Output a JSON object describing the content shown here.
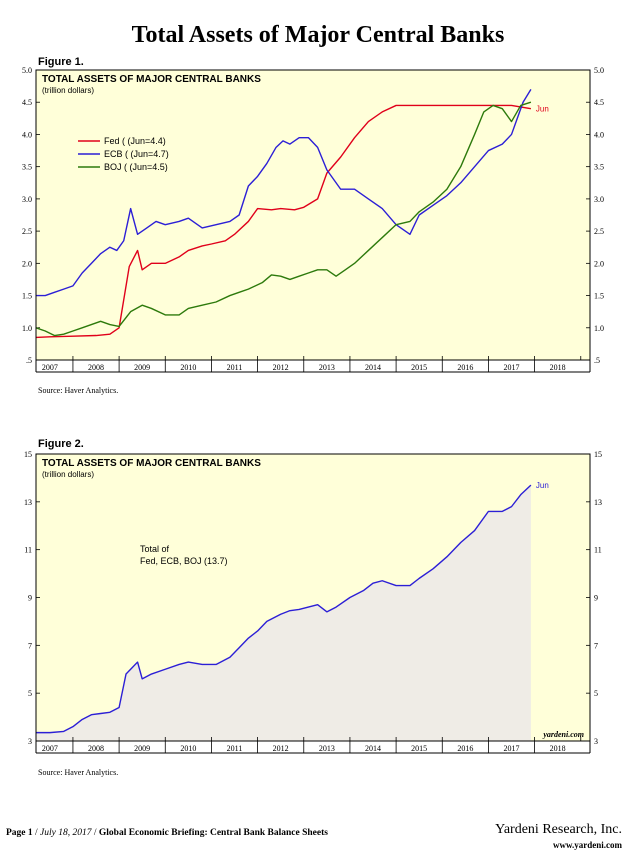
{
  "page": {
    "title": "Total Assets of Major Central Banks",
    "figure1_label": "Figure 1.",
    "figure2_label": "Figure 2.",
    "source1": "Source: Haver Analytics.",
    "source2": "Source: Haver Analytics.",
    "footer_page": "Page 1",
    "footer_date": "July 18, 2017",
    "footer_doc": "Global Economic Briefing: Central Bank Balance Sheets",
    "footer_company": "Yardeni Research, Inc.",
    "footer_url": "www.yardeni.com"
  },
  "chart_data": [
    {
      "type": "line",
      "title": "TOTAL ASSETS OF MAJOR CENTRAL BANKS",
      "subtitle": "(trillion dollars)",
      "xlabel": "",
      "ylabel": "",
      "x_ticks": [
        "2007",
        "2008",
        "2009",
        "2010",
        "2011",
        "2012",
        "2013",
        "2014",
        "2015",
        "2016",
        "2017",
        "2018"
      ],
      "xlim": [
        2006.7,
        2018.7
      ],
      "ylim": [
        0.5,
        5.0
      ],
      "y_ticks": [
        0.5,
        1.0,
        1.5,
        2.0,
        2.5,
        3.0,
        3.5,
        4.0,
        4.5,
        5.0
      ],
      "y_tick_labels": [
        ".5",
        "1.0",
        "1.5",
        "2.0",
        "2.5",
        "3.0",
        "3.5",
        "4.0",
        "4.5",
        "5.0"
      ],
      "end_label": "Jun",
      "legend_position": "upper-left",
      "background": "#ffffd9",
      "series": [
        {
          "name": "Fed ( (Jun=4.4)",
          "color": "#e0001b",
          "x": [
            2006.7,
            2007.0,
            2007.5,
            2008.0,
            2008.3,
            2008.5,
            2008.72,
            2008.9,
            2009.0,
            2009.2,
            2009.5,
            2009.8,
            2010.0,
            2010.3,
            2010.5,
            2010.8,
            2011.0,
            2011.3,
            2011.5,
            2011.8,
            2012.0,
            2012.3,
            2012.5,
            2012.8,
            2013.0,
            2013.3,
            2013.6,
            2013.9,
            2014.2,
            2014.5,
            2014.8,
            2015.0,
            2015.5,
            2016.0,
            2016.5,
            2017.0,
            2017.42
          ],
          "y": [
            0.85,
            0.86,
            0.87,
            0.88,
            0.9,
            1.0,
            1.95,
            2.2,
            1.9,
            2.0,
            2.0,
            2.1,
            2.2,
            2.27,
            2.3,
            2.35,
            2.45,
            2.65,
            2.85,
            2.83,
            2.85,
            2.83,
            2.87,
            3.0,
            3.4,
            3.65,
            3.95,
            4.2,
            4.35,
            4.45,
            4.45,
            4.45,
            4.45,
            4.45,
            4.45,
            4.45,
            4.4
          ]
        },
        {
          "name": "ECB ( (Jun=4.7)",
          "color": "#2c1fd6",
          "x": [
            2006.7,
            2006.9,
            2007.1,
            2007.3,
            2007.5,
            2007.7,
            2007.9,
            2008.1,
            2008.3,
            2008.45,
            2008.6,
            2008.75,
            2008.9,
            2009.1,
            2009.3,
            2009.5,
            2009.8,
            2010.0,
            2010.3,
            2010.6,
            2010.9,
            2011.1,
            2011.3,
            2011.5,
            2011.7,
            2011.9,
            2012.05,
            2012.2,
            2012.4,
            2012.6,
            2012.8,
            2013.0,
            2013.3,
            2013.6,
            2013.9,
            2014.2,
            2014.5,
            2014.8,
            2015.0,
            2015.3,
            2015.6,
            2015.9,
            2016.2,
            2016.5,
            2016.8,
            2017.0,
            2017.25,
            2017.42
          ],
          "y": [
            1.5,
            1.5,
            1.55,
            1.6,
            1.65,
            1.85,
            2.0,
            2.15,
            2.25,
            2.2,
            2.35,
            2.85,
            2.45,
            2.55,
            2.65,
            2.6,
            2.65,
            2.7,
            2.55,
            2.6,
            2.65,
            2.75,
            3.2,
            3.35,
            3.55,
            3.8,
            3.9,
            3.85,
            3.95,
            3.95,
            3.8,
            3.45,
            3.15,
            3.15,
            3.0,
            2.85,
            2.6,
            2.45,
            2.75,
            2.9,
            3.05,
            3.25,
            3.5,
            3.75,
            3.85,
            4.0,
            4.5,
            4.7
          ]
        },
        {
          "name": "BOJ ( (Jun=4.5)",
          "color": "#2d7a0c",
          "x": [
            2006.7,
            2006.9,
            2007.1,
            2007.3,
            2007.5,
            2007.7,
            2007.9,
            2008.1,
            2008.3,
            2008.5,
            2008.75,
            2009.0,
            2009.2,
            2009.5,
            2009.8,
            2010.0,
            2010.3,
            2010.6,
            2010.9,
            2011.1,
            2011.3,
            2011.6,
            2011.8,
            2012.0,
            2012.2,
            2012.4,
            2012.6,
            2012.8,
            2013.0,
            2013.2,
            2013.4,
            2013.6,
            2013.9,
            2014.2,
            2014.5,
            2014.8,
            2015.0,
            2015.3,
            2015.6,
            2015.9,
            2016.2,
            2016.4,
            2016.6,
            2016.8,
            2017.0,
            2017.2,
            2017.42
          ],
          "y": [
            1.0,
            0.95,
            0.88,
            0.9,
            0.95,
            1.0,
            1.05,
            1.1,
            1.05,
            1.02,
            1.25,
            1.35,
            1.3,
            1.2,
            1.2,
            1.3,
            1.35,
            1.4,
            1.5,
            1.55,
            1.6,
            1.7,
            1.82,
            1.8,
            1.75,
            1.8,
            1.85,
            1.9,
            1.9,
            1.8,
            1.9,
            2.0,
            2.2,
            2.4,
            2.6,
            2.65,
            2.8,
            2.95,
            3.15,
            3.5,
            4.0,
            4.35,
            4.45,
            4.4,
            4.2,
            4.45,
            4.5
          ]
        }
      ]
    },
    {
      "type": "area",
      "title": "TOTAL ASSETS OF MAJOR CENTRAL BANKS",
      "subtitle": "(trillion dollars)",
      "xlabel": "",
      "ylabel": "",
      "x_ticks": [
        "2007",
        "2008",
        "2009",
        "2010",
        "2011",
        "2012",
        "2013",
        "2014",
        "2015",
        "2016",
        "2017",
        "2018"
      ],
      "xlim": [
        2006.7,
        2018.7
      ],
      "ylim": [
        3,
        15
      ],
      "y_ticks": [
        3,
        5,
        7,
        9,
        11,
        13,
        15
      ],
      "end_label": "Jun",
      "annotation": "Total of\nFed, ECB, BOJ (13.7)",
      "watermark": "yardeni.com",
      "background": "#ffffd9",
      "fill": "#efece6",
      "series": [
        {
          "name": "",
          "color": "#2c1fd6",
          "x": [
            2006.7,
            2007.0,
            2007.3,
            2007.5,
            2007.7,
            2007.9,
            2008.1,
            2008.3,
            2008.5,
            2008.65,
            2008.75,
            2008.9,
            2009.0,
            2009.2,
            2009.5,
            2009.8,
            2010.0,
            2010.3,
            2010.6,
            2010.9,
            2011.1,
            2011.3,
            2011.5,
            2011.7,
            2011.9,
            2012.0,
            2012.2,
            2012.4,
            2012.6,
            2012.8,
            2013.0,
            2013.2,
            2013.5,
            2013.8,
            2014.0,
            2014.2,
            2014.5,
            2014.8,
            2015.0,
            2015.3,
            2015.6,
            2015.9,
            2016.2,
            2016.5,
            2016.8,
            2017.0,
            2017.2,
            2017.42
          ],
          "y": [
            3.35,
            3.35,
            3.4,
            3.6,
            3.9,
            4.1,
            4.15,
            4.2,
            4.4,
            5.8,
            6.0,
            6.3,
            5.6,
            5.8,
            6.0,
            6.2,
            6.3,
            6.2,
            6.2,
            6.5,
            6.9,
            7.3,
            7.6,
            8.0,
            8.2,
            8.3,
            8.45,
            8.5,
            8.6,
            8.7,
            8.4,
            8.6,
            9.0,
            9.3,
            9.6,
            9.7,
            9.5,
            9.5,
            9.8,
            10.2,
            10.7,
            11.3,
            11.8,
            12.6,
            12.6,
            12.8,
            13.3,
            13.7
          ]
        }
      ]
    }
  ]
}
